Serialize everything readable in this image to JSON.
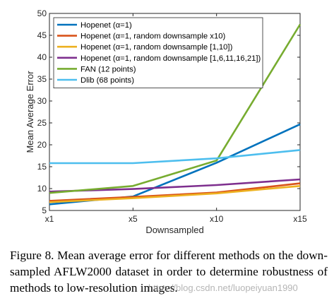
{
  "chart_data": {
    "type": "line",
    "title": "",
    "xlabel": "Downsampled",
    "ylabel": "Mean Average Error",
    "categories": [
      "x1",
      "x5",
      "x10",
      "x15"
    ],
    "ylim": [
      5,
      50
    ],
    "yticks": [
      5,
      10,
      15,
      20,
      25,
      30,
      35,
      40,
      45,
      50
    ],
    "grid": false,
    "legend_position": "top-left",
    "series": [
      {
        "name": "Hopenet (α=1)",
        "color": "#0072bd",
        "values": [
          6.4,
          8.2,
          15.9,
          24.7
        ]
      },
      {
        "name": "Hopenet (α=1, random downsample x10)",
        "color": "#d95319",
        "values": [
          7.2,
          8.1,
          9.1,
          11.2
        ]
      },
      {
        "name": "Hopenet (α=1, random downsample [1,10])",
        "color": "#edb120",
        "values": [
          6.9,
          7.8,
          8.9,
          10.6
        ]
      },
      {
        "name": "Hopenet (α=1, random downsample [1,6,11,16,21])",
        "color": "#7e2f8e",
        "values": [
          9.3,
          9.9,
          10.8,
          12.1
        ]
      },
      {
        "name": "FAN (12 points)",
        "color": "#77ac30",
        "values": [
          9.0,
          10.6,
          16.4,
          47.5
        ]
      },
      {
        "name": "Dlib (68 points)",
        "color": "#4dbeee",
        "values": [
          15.8,
          15.8,
          16.9,
          18.8
        ]
      }
    ]
  },
  "caption": "Figure 8. Mean average error for different methods on the down-sampled AFLW2000 dataset in order to determine robustness of methods to low-resolution images.",
  "watermark": "https://blog.csdn.net/luopeiyuan1990"
}
